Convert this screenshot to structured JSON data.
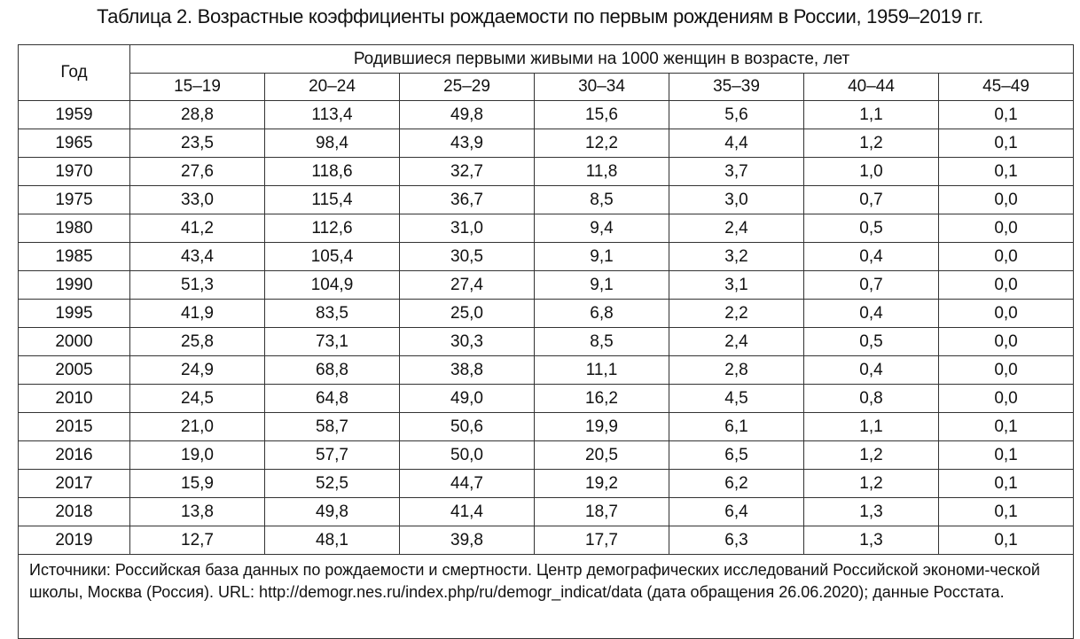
{
  "title": "Таблица 2. Возрастные коэффициенты рождаемости по первым рождениям в России, 1959–2019 гг.",
  "table": {
    "year_header": "Год",
    "group_header": "Родившиеся первыми живыми на 1000 женщин в возрасте, лет",
    "age_groups": [
      "15–19",
      "20–24",
      "25–29",
      "30–34",
      "35–39",
      "40–44",
      "45–49"
    ],
    "rows": [
      [
        "1959",
        "28,8",
        "113,4",
        "49,8",
        "15,6",
        "5,6",
        "1,1",
        "0,1"
      ],
      [
        "1965",
        "23,5",
        "98,4",
        "43,9",
        "12,2",
        "4,4",
        "1,2",
        "0,1"
      ],
      [
        "1970",
        "27,6",
        "118,6",
        "32,7",
        "11,8",
        "3,7",
        "1,0",
        "0,1"
      ],
      [
        "1975",
        "33,0",
        "115,4",
        "36,7",
        "8,5",
        "3,0",
        "0,7",
        "0,0"
      ],
      [
        "1980",
        "41,2",
        "112,6",
        "31,0",
        "9,4",
        "2,4",
        "0,5",
        "0,0"
      ],
      [
        "1985",
        "43,4",
        "105,4",
        "30,5",
        "9,1",
        "3,2",
        "0,4",
        "0,0"
      ],
      [
        "1990",
        "51,3",
        "104,9",
        "27,4",
        "9,1",
        "3,1",
        "0,7",
        "0,0"
      ],
      [
        "1995",
        "41,9",
        "83,5",
        "25,0",
        "6,8",
        "2,2",
        "0,4",
        "0,0"
      ],
      [
        "2000",
        "25,8",
        "73,1",
        "30,3",
        "8,5",
        "2,4",
        "0,5",
        "0,0"
      ],
      [
        "2005",
        "24,9",
        "68,8",
        "38,8",
        "11,1",
        "2,8",
        "0,4",
        "0,0"
      ],
      [
        "2010",
        "24,5",
        "64,8",
        "49,0",
        "16,2",
        "4,5",
        "0,8",
        "0,0"
      ],
      [
        "2015",
        "21,0",
        "58,7",
        "50,6",
        "19,9",
        "6,1",
        "1,1",
        "0,1"
      ],
      [
        "2016",
        "19,0",
        "57,7",
        "50,0",
        "20,5",
        "6,5",
        "1,2",
        "0,1"
      ],
      [
        "2017",
        "15,9",
        "52,5",
        "44,7",
        "19,2",
        "6,2",
        "1,2",
        "0,1"
      ],
      [
        "2018",
        "13,8",
        "49,8",
        "41,4",
        "18,7",
        "6,4",
        "1,3",
        "0,1"
      ],
      [
        "2019",
        "12,7",
        "48,1",
        "39,8",
        "17,7",
        "6,3",
        "1,3",
        "0,1"
      ]
    ],
    "source_note": "Источники: Российская база данных по рождаемости и смертности. Центр демографических исследований Российской экономи-ческой школы, Москва (Россия). URL: http://demogr.nes.ru/index.php/ru/demogr_indicat/data (дата обращения 26.06.2020); данные Росстата."
  }
}
